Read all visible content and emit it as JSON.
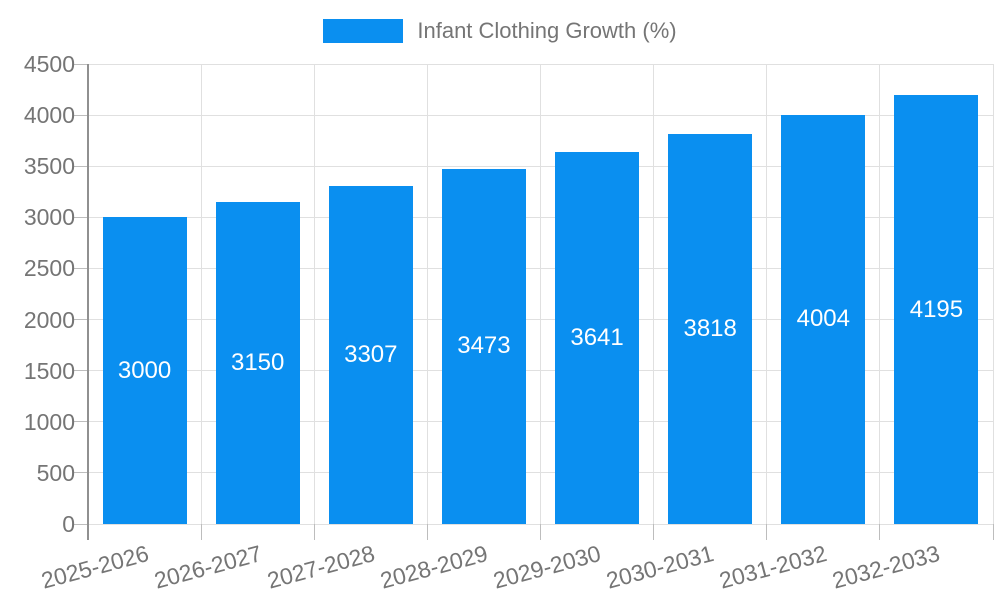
{
  "chart_data": {
    "type": "bar",
    "legend_label": "Infant Clothing Growth (%)",
    "categories": [
      "2025-2026",
      "2026-2027",
      "2027-2028",
      "2028-2029",
      "2029-2030",
      "2030-2031",
      "2031-2032",
      "2032-2033"
    ],
    "values": [
      3000,
      3150,
      3307,
      3473,
      3641,
      3818,
      4004,
      4195
    ],
    "bar_value_labels": [
      "3000",
      "3150",
      "3307",
      "3473",
      "3641",
      "3818",
      "4004",
      "4195"
    ],
    "y_tick_labels": [
      "0",
      "500",
      "1000",
      "1500",
      "2000",
      "2500",
      "3000",
      "3500",
      "4000",
      "4500"
    ],
    "ylim": [
      0,
      4500
    ],
    "ytick_step": 500,
    "xlabel": "",
    "ylabel": "",
    "grid": true,
    "legend_position": "top",
    "x_label_rotation_deg": -15,
    "colors": {
      "bar": "#0a8ff0",
      "bar_label_text": "#ffffff",
      "axis_text": "#757575",
      "grid_line": "#e0e0e0",
      "axis_line": "#909090",
      "tick_line": "#bdbdbd",
      "background": "#ffffff"
    }
  }
}
